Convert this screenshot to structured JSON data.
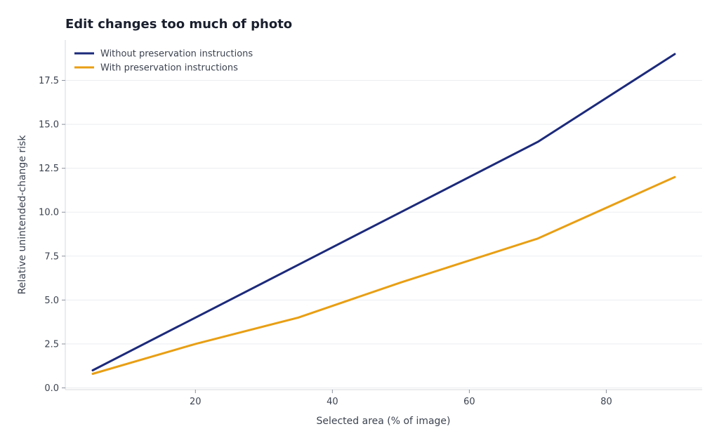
{
  "chart_data": {
    "type": "line",
    "title": "Edit changes too much of photo",
    "xlabel": "Selected area (% of image)",
    "ylabel": "Relative unintended-change risk",
    "xlim": [
      1,
      94
    ],
    "ylim": [
      -0.1,
      19.8
    ],
    "x_ticks": [
      20,
      40,
      60,
      80
    ],
    "y_ticks": [
      0.0,
      2.5,
      5.0,
      7.5,
      10.0,
      12.5,
      15.0,
      17.5
    ],
    "grid": "horizontal",
    "legend_position": "top-left",
    "series": [
      {
        "name": "Without preservation instructions",
        "color": "#1c2a7a",
        "x": [
          5,
          20,
          35,
          50,
          70,
          90
        ],
        "y": [
          1.0,
          4.0,
          7.0,
          10.0,
          14.0,
          19.0
        ]
      },
      {
        "name": "With preservation instructions",
        "color": "#e89f14",
        "x": [
          5,
          20,
          35,
          50,
          70,
          90
        ],
        "y": [
          0.8,
          2.5,
          4.0,
          6.0,
          8.5,
          12.0
        ]
      }
    ]
  }
}
